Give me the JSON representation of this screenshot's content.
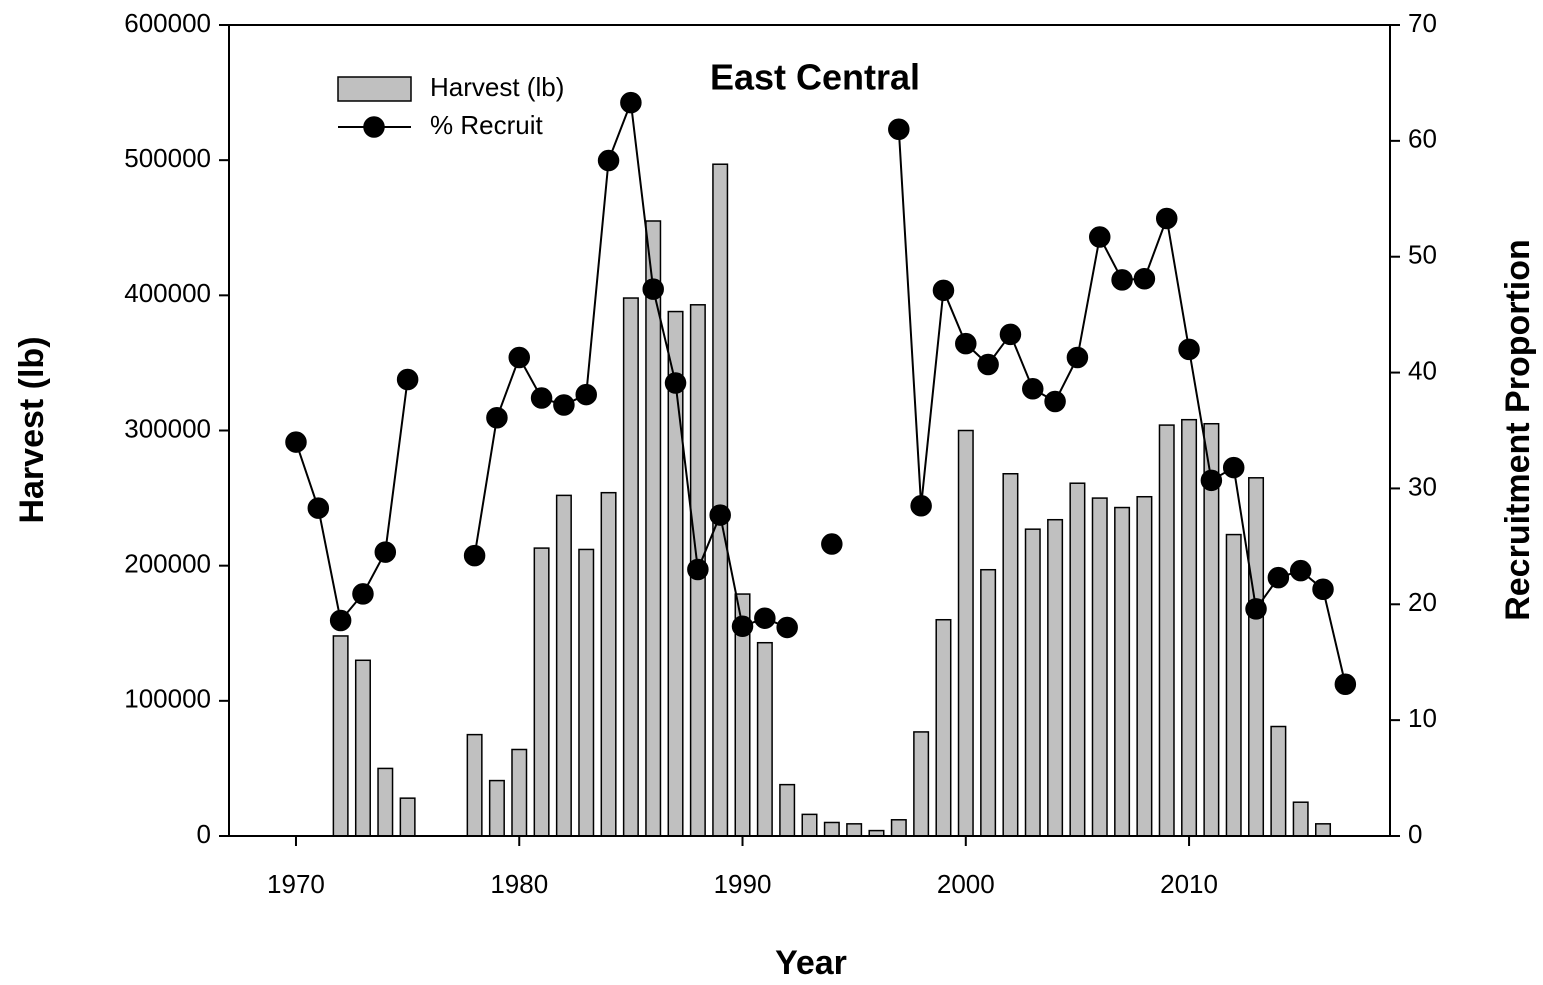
{
  "chart_data": {
    "type": "combo",
    "title": "East Central",
    "xlabel": "Year",
    "ylabel": "Harvest (lb)",
    "y2label": "Recruitment Proportion",
    "x": [
      1970,
      1971,
      1972,
      1973,
      1974,
      1975,
      1976,
      1977,
      1978,
      1979,
      1980,
      1981,
      1982,
      1983,
      1984,
      1985,
      1986,
      1987,
      1988,
      1989,
      1990,
      1991,
      1992,
      1993,
      1994,
      1995,
      1996,
      1997,
      1998,
      1999,
      2000,
      2001,
      2002,
      2003,
      2004,
      2005,
      2006,
      2007,
      2008,
      2009,
      2010,
      2011,
      2012,
      2013,
      2014,
      2015,
      2016,
      2017
    ],
    "series": [
      {
        "name": "Harvest (lb)",
        "type": "bar",
        "color": "#c0c0c0",
        "values": [
          null,
          null,
          148000,
          130000,
          50000,
          28000,
          null,
          null,
          75000,
          41000,
          64000,
          213000,
          252000,
          212000,
          254000,
          398000,
          455000,
          388000,
          393000,
          497000,
          179000,
          143000,
          38000,
          16000,
          10000,
          9000,
          4000,
          12000,
          77000,
          160000,
          300000,
          197000,
          268000,
          227000,
          234000,
          261000,
          250000,
          243000,
          251000,
          304000,
          308000,
          305000,
          223000,
          265000,
          81000,
          25000,
          9000,
          null
        ]
      },
      {
        "name": "% Recruit",
        "type": "line",
        "axis": "y2",
        "color": "#000000",
        "values": [
          34.0,
          28.3,
          18.6,
          20.9,
          24.5,
          39.4,
          null,
          null,
          24.2,
          36.1,
          41.3,
          37.8,
          37.2,
          38.1,
          58.3,
          63.3,
          47.2,
          39.1,
          23.0,
          27.7,
          18.1,
          18.8,
          18.0,
          null,
          25.2,
          null,
          null,
          61.0,
          28.5,
          47.1,
          42.5,
          40.7,
          43.3,
          38.6,
          37.5,
          41.3,
          51.7,
          48.0,
          48.1,
          53.3,
          42.0,
          30.7,
          31.8,
          19.6,
          22.3,
          22.9,
          21.3,
          13.1
        ]
      }
    ],
    "xlim": [
      1967,
      2019
    ],
    "xticks": [
      1970,
      1980,
      1990,
      2000,
      2010
    ],
    "ylim": [
      0,
      600000
    ],
    "yticks": [
      0,
      100000,
      200000,
      300000,
      400000,
      500000,
      600000
    ],
    "y2lim": [
      0,
      70
    ],
    "y2ticks": [
      0,
      10,
      20,
      30,
      40,
      50,
      60,
      70
    ],
    "legend": "upper-left"
  }
}
